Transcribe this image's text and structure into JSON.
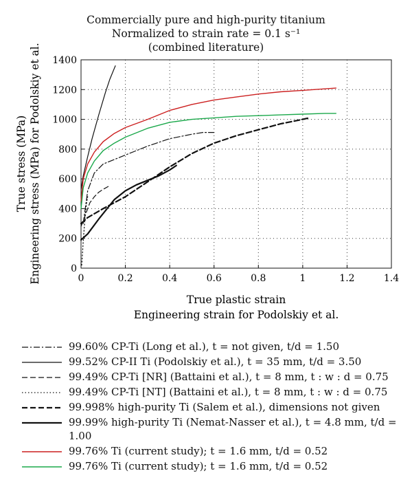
{
  "colors": {
    "red": "#cc1f1f",
    "green": "#1aa84a",
    "black": "#111111"
  },
  "chart_data": {
    "type": "line",
    "title": [
      "Commercially pure and high-purity titanium",
      "Normalized to strain rate = 0.1 s⁻¹",
      "(combined literature)"
    ],
    "xlabel": [
      "True plastic strain",
      "Engineering strain for Podolskiy et al."
    ],
    "ylabel": [
      "True stress (MPa)",
      "Engineering stress (MPa) for Podolskiy et al."
    ],
    "xlim": [
      0,
      1.4
    ],
    "ylim": [
      0,
      1400
    ],
    "xticks": [
      0,
      0.2,
      0.4,
      0.6,
      0.8,
      1,
      1.2,
      1.4
    ],
    "xtick_labels": [
      "0",
      "0.2",
      "0.4",
      "0.6",
      "0.8",
      "1",
      "1.2",
      "1.4"
    ],
    "yticks": [
      0,
      200,
      400,
      600,
      800,
      1000,
      1200,
      1400
    ],
    "ytick_labels": [
      "0",
      "200",
      "400",
      "600",
      "800",
      "1000",
      "1200",
      "1400"
    ],
    "grid": true,
    "legend_position": "bottom",
    "series": [
      {
        "name": "99.60% CP-Ti (Long et al.), t = not given, t/d = 1.50",
        "style": "dashdot",
        "width": 1.2,
        "color": "#111111",
        "x": [
          0.01,
          0.03,
          0.06,
          0.1,
          0.15,
          0.2,
          0.3,
          0.4,
          0.5,
          0.55,
          0.6
        ],
        "y": [
          300,
          520,
          640,
          700,
          730,
          760,
          820,
          870,
          900,
          912,
          912
        ]
      },
      {
        "name": "99.52% CP-II Ti (Podolskiy et al.), t = 35 mm, t/d = 3.50",
        "style": "solid",
        "width": 1.2,
        "color": "#111111",
        "x": [
          0,
          0.01,
          0.03,
          0.05,
          0.08,
          0.11,
          0.13,
          0.155
        ],
        "y": [
          530,
          620,
          750,
          870,
          1030,
          1180,
          1270,
          1360
        ]
      },
      {
        "name": "99.49% CP-Ti [NR] (Battaini et al.), t = 8 mm, t : w : d = 0.75",
        "style": "dashed",
        "width": 1.2,
        "color": "#111111",
        "x": [
          0,
          0.02,
          0.04,
          0.06,
          0.08,
          0.1,
          0.13
        ],
        "y": [
          280,
          360,
          440,
          480,
          510,
          530,
          555
        ]
      },
      {
        "name": "99.49% CP-Ti [NT] (Battaini et al.), t = 8 mm, t : w : d = 0.75",
        "style": "dotted",
        "width": 1.2,
        "color": "#111111",
        "x": [
          0.003,
          0.006,
          0.01,
          0.015,
          0.02,
          0.025,
          0.03
        ],
        "y": [
          20,
          80,
          180,
          280,
          370,
          440,
          480
        ]
      },
      {
        "name": "99.998% high-purity Ti (Salem et al.), dimensions not given",
        "style": "dashed-thick",
        "width": 2.2,
        "color": "#111111",
        "x": [
          0,
          0.03,
          0.1,
          0.2,
          0.3,
          0.4,
          0.5,
          0.6,
          0.7,
          0.8,
          0.9,
          1.0,
          1.03
        ],
        "y": [
          300,
          340,
          400,
          480,
          580,
          680,
          770,
          840,
          890,
          930,
          970,
          1000,
          1010
        ]
      },
      {
        "name": "99.99% high-purity Ti (Nemat-Nasser et al.), t = 4.8 mm, t/d = 1.00",
        "style": "solid-thick",
        "width": 2.2,
        "color": "#111111",
        "x": [
          0,
          0.03,
          0.08,
          0.15,
          0.2,
          0.25,
          0.3,
          0.35,
          0.4,
          0.43
        ],
        "y": [
          190,
          230,
          330,
          460,
          520,
          560,
          590,
          620,
          660,
          690
        ]
      },
      {
        "name": "99.76% Ti (current study); t = 1.6 mm, t/d = 0.52",
        "style": "solid",
        "width": 1.4,
        "color": "#cc1f1f",
        "x": [
          0,
          0.01,
          0.03,
          0.06,
          0.1,
          0.15,
          0.2,
          0.3,
          0.4,
          0.5,
          0.6,
          0.7,
          0.8,
          0.9,
          1.0,
          1.1,
          1.15
        ],
        "y": [
          450,
          600,
          700,
          780,
          850,
          905,
          945,
          1000,
          1060,
          1100,
          1130,
          1150,
          1170,
          1185,
          1195,
          1205,
          1210
        ]
      },
      {
        "name": "99.76% Ti (current study); t = 1.6 mm, t/d = 0.52",
        "style": "solid",
        "width": 1.4,
        "color": "#1aa84a",
        "x": [
          0,
          0.01,
          0.03,
          0.06,
          0.1,
          0.15,
          0.2,
          0.3,
          0.4,
          0.5,
          0.6,
          0.7,
          0.8,
          0.9,
          1.0,
          1.1,
          1.15
        ],
        "y": [
          400,
          540,
          640,
          720,
          790,
          840,
          880,
          940,
          980,
          1000,
          1010,
          1020,
          1025,
          1030,
          1035,
          1040,
          1040
        ]
      }
    ]
  },
  "legend": [
    {
      "text": "99.60% CP-Ti (Long et al.), t = not given, t/d = 1.50"
    },
    {
      "text": "99.52% CP-II Ti (Podolskiy et al.), t = 35 mm, t/d = 3.50"
    },
    {
      "text": "99.49% CP-Ti [NR] (Battaini et al.), t = 8 mm, t : w : d = 0.75"
    },
    {
      "text": "99.49% CP-Ti [NT] (Battaini et al.), t = 8 mm, t : w : d = 0.75"
    },
    {
      "text": "99.998% high-purity Ti (Salem et al.), dimensions not given"
    },
    {
      "text": "99.99% high-purity Ti (Nemat-Nasser et al.), t = 4.8 mm, t/d = 1.00"
    },
    {
      "text": "99.76% Ti (current study); t = 1.6 mm, t/d = 0.52"
    },
    {
      "text": "99.76% Ti (current study); t = 1.6 mm, t/d = 0.52"
    }
  ]
}
